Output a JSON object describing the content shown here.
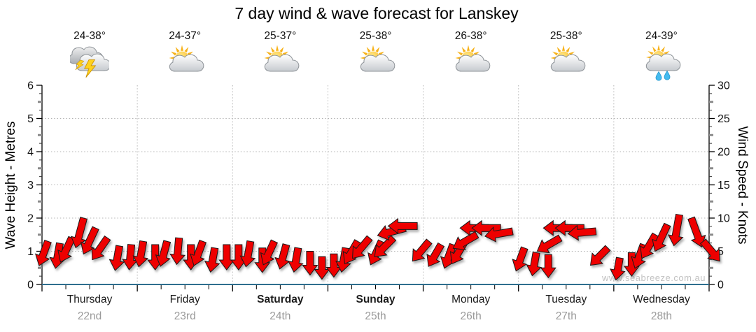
{
  "title": "7 day wind & wave forecast for Lanskey",
  "watermark": "www.seabreeze.com.au",
  "colors": {
    "arrow_fill": "#ee0000",
    "arrow_outline": "#1a1a1a",
    "wave_line": "#2e6e8e",
    "grid": "#b3b3b3",
    "axis": "#000000",
    "date_text": "#9a9a9a"
  },
  "days": [
    {
      "name": "Thursday",
      "date": "22nd",
      "temp": "24-38°",
      "icon": "thunderstorm",
      "bold": false
    },
    {
      "name": "Friday",
      "date": "23rd",
      "temp": "24-37°",
      "icon": "partly-cloudy",
      "bold": false
    },
    {
      "name": "Saturday",
      "date": "24th",
      "temp": "25-37°",
      "icon": "partly-cloudy",
      "bold": true
    },
    {
      "name": "Sunday",
      "date": "25th",
      "temp": "25-38°",
      "icon": "partly-cloudy",
      "bold": true
    },
    {
      "name": "Monday",
      "date": "26th",
      "temp": "26-38°",
      "icon": "partly-cloudy",
      "bold": false
    },
    {
      "name": "Tuesday",
      "date": "27th",
      "temp": "25-38°",
      "icon": "partly-cloudy",
      "bold": false
    },
    {
      "name": "Wednesday",
      "date": "28th",
      "temp": "24-39°",
      "icon": "partly-cloudy-rain",
      "bold": false
    }
  ],
  "chart_data": {
    "type": "area",
    "title": "7 day wind & wave forecast for Lanskey",
    "x_categories": [
      "Thursday 22nd",
      "Friday 23rd",
      "Saturday 24th",
      "Sunday 25th",
      "Monday 26th",
      "Tuesday 27th",
      "Wednesday 28th"
    ],
    "points_per_day": 8,
    "left_axis": {
      "label": "Wave Height - Metres",
      "min": 0,
      "max": 6,
      "ticks": [
        0,
        1,
        2,
        3,
        4,
        5,
        6
      ]
    },
    "right_axis": {
      "label": "Wind Speed - Knots",
      "min": 0,
      "max": 30,
      "ticks": [
        0,
        5,
        10,
        15,
        20,
        25,
        30
      ]
    },
    "grid": true,
    "series": [
      {
        "name": "Wind speed (knots, red direction arrows)",
        "wind_speed_knots": [
          6.5,
          6.2,
          7,
          10,
          8.5,
          7,
          5.8,
          6,
          6.5,
          6,
          6.5,
          7,
          6,
          6.5,
          5.5,
          6,
          6,
          6.5,
          5.5,
          6.5,
          6,
          5.5,
          5,
          4.2,
          4.6,
          5.5,
          6.5,
          7,
          6.5,
          7,
          8.5,
          8.8,
          6.5,
          6,
          6,
          6.5,
          7.5,
          8.5,
          8.5,
          8,
          5.5,
          4.8,
          4.5,
          7,
          8.5,
          8.5,
          8,
          5.5,
          4,
          4.8,
          6,
          7.5,
          9,
          10.5,
          10,
          6.5
        ],
        "wind_dir_deg_0down_90left": [
          20,
          10,
          25,
          15,
          25,
          35,
          10,
          5,
          10,
          0,
          15,
          5,
          0,
          20,
          10,
          0,
          0,
          10,
          0,
          25,
          15,
          10,
          0,
          0,
          0,
          10,
          30,
          40,
          25,
          45,
          75,
          90,
          40,
          30,
          20,
          30,
          60,
          90,
          90,
          80,
          20,
          10,
          0,
          60,
          90,
          90,
          85,
          45,
          10,
          0,
          20,
          30,
          25,
          10,
          -20,
          -40
        ]
      },
      {
        "name": "Wave height (metres, blue line)",
        "constant_value_metres": 0.05
      }
    ]
  }
}
